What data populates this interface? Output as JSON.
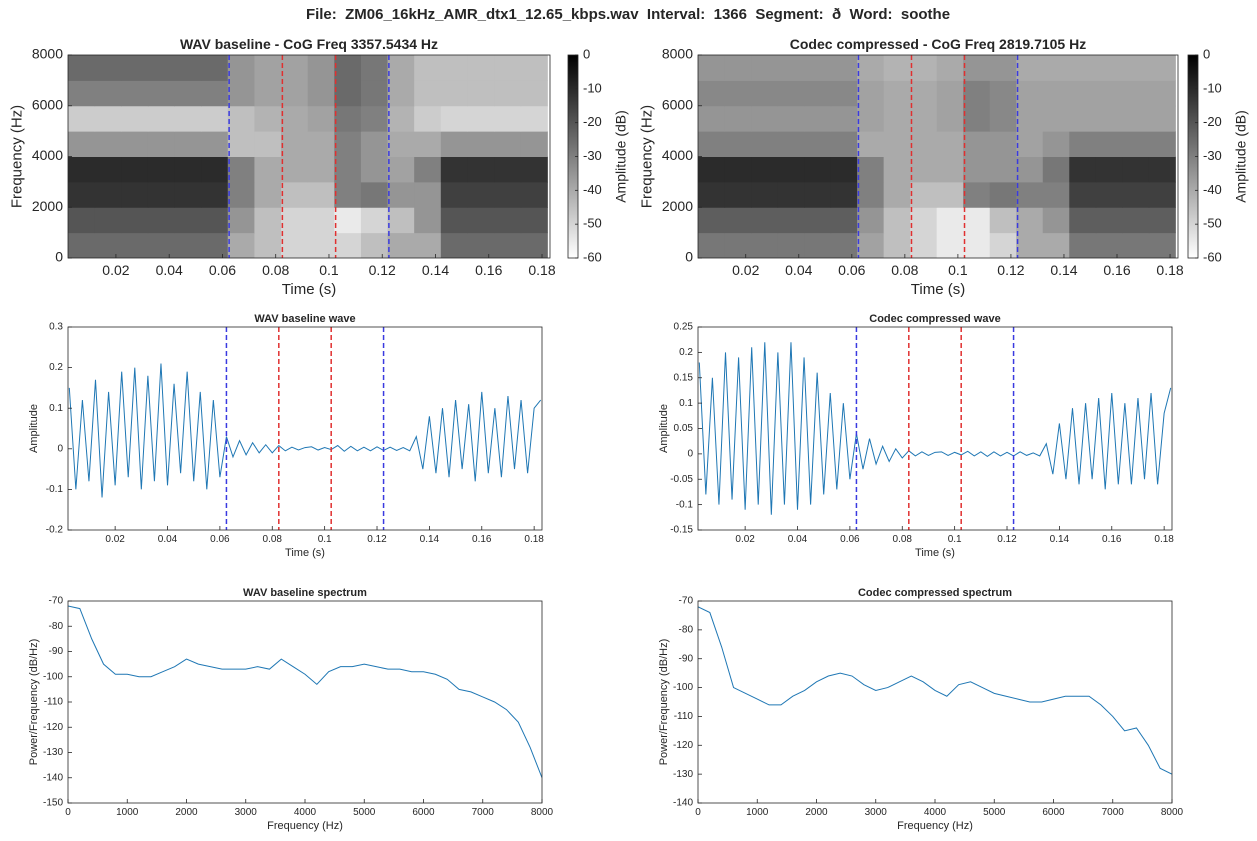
{
  "title": "File:  ZM06_16kHz_AMR_dtx1_12.65_kbps.wav  Interval:  1366  Segment:  ð  Word:  soothe",
  "chart_data": [
    {
      "type": "heatmap",
      "title": "WAV baseline - CoG Freq 3357.5434 Hz",
      "xlabel": "Time (s)",
      "ylabel": "Frequency (Hz)",
      "x": [
        0.007,
        0.017,
        0.027,
        0.037,
        0.047,
        0.057,
        0.067,
        0.077,
        0.087,
        0.097,
        0.107,
        0.117,
        0.127,
        0.137,
        0.147,
        0.157,
        0.167,
        0.177
      ],
      "y": [
        500,
        1500,
        2500,
        3500,
        4500,
        5500,
        6500,
        7500
      ],
      "values": [
        [
          -25,
          -25,
          -25,
          -25,
          -25,
          -25,
          -40,
          -45,
          -50,
          -50,
          -50,
          -45,
          -40,
          -40,
          -25,
          -25,
          -25,
          -25
        ],
        [
          -20,
          -20,
          -20,
          -20,
          -20,
          -20,
          -35,
          -45,
          -50,
          -50,
          -55,
          -50,
          -45,
          -35,
          -20,
          -20,
          -20,
          -20
        ],
        [
          -12,
          -12,
          -12,
          -12,
          -12,
          -12,
          -30,
          -40,
          -45,
          -45,
          -30,
          -28,
          -35,
          -35,
          -15,
          -15,
          -15,
          -15
        ],
        [
          -10,
          -10,
          -10,
          -10,
          -10,
          -10,
          -30,
          -40,
          -40,
          -40,
          -30,
          -35,
          -38,
          -30,
          -12,
          -12,
          -12,
          -12
        ],
        [
          -35,
          -35,
          -35,
          -35,
          -35,
          -35,
          -45,
          -45,
          -40,
          -40,
          -30,
          -35,
          -40,
          -40,
          -35,
          -35,
          -35,
          -35
        ],
        [
          -48,
          -48,
          -48,
          -48,
          -48,
          -48,
          -45,
          -42,
          -40,
          -38,
          -28,
          -30,
          -42,
          -48,
          -50,
          -50,
          -50,
          -50
        ],
        [
          -30,
          -30,
          -30,
          -30,
          -30,
          -30,
          -35,
          -38,
          -38,
          -35,
          -25,
          -28,
          -40,
          -45,
          -45,
          -45,
          -45,
          -45
        ],
        [
          -25,
          -25,
          -25,
          -25,
          -25,
          -25,
          -35,
          -38,
          -38,
          -35,
          -25,
          -28,
          -40,
          -45,
          -45,
          -45,
          -45,
          -45
        ]
      ],
      "clim": [
        -60,
        0
      ],
      "cticks": [
        0,
        -10,
        -20,
        -30,
        -40,
        -50,
        -60
      ],
      "clabel": "Amplitude (dB)",
      "xlim": [
        0.002,
        0.183
      ],
      "xticks": [
        0.02,
        0.04,
        0.06,
        0.08,
        0.1,
        0.12,
        0.14,
        0.16,
        0.18
      ],
      "ylim": [
        0,
        8000
      ],
      "yticks": [
        0,
        2000,
        4000,
        6000,
        8000
      ],
      "vlines": [
        {
          "x": 0.0625,
          "color": "#3a3ae0"
        },
        {
          "x": 0.0825,
          "color": "#e03030"
        },
        {
          "x": 0.1025,
          "color": "#e03030"
        },
        {
          "x": 0.1225,
          "color": "#3a3ae0"
        }
      ]
    },
    {
      "type": "heatmap",
      "title": "Codec compressed - CoG Freq 2819.7105 Hz",
      "xlabel": "Time (s)",
      "ylabel": "Frequency (Hz)",
      "x": [
        0.007,
        0.017,
        0.027,
        0.037,
        0.047,
        0.057,
        0.067,
        0.077,
        0.087,
        0.097,
        0.107,
        0.117,
        0.127,
        0.137,
        0.147,
        0.157,
        0.167,
        0.177
      ],
      "y": [
        500,
        1500,
        2500,
        3500,
        4500,
        5500,
        6500,
        7500
      ],
      "values": [
        [
          -28,
          -28,
          -28,
          -28,
          -28,
          -28,
          -38,
          -45,
          -50,
          -55,
          -55,
          -50,
          -40,
          -40,
          -28,
          -28,
          -28,
          -28
        ],
        [
          -22,
          -22,
          -22,
          -22,
          -22,
          -22,
          -35,
          -45,
          -50,
          -55,
          -55,
          -45,
          -40,
          -35,
          -22,
          -22,
          -22,
          -22
        ],
        [
          -12,
          -12,
          -12,
          -12,
          -12,
          -12,
          -30,
          -40,
          -45,
          -45,
          -30,
          -28,
          -30,
          -30,
          -15,
          -15,
          -15,
          -15
        ],
        [
          -10,
          -10,
          -10,
          -10,
          -10,
          -10,
          -30,
          -40,
          -40,
          -40,
          -35,
          -35,
          -35,
          -28,
          -12,
          -12,
          -12,
          -12
        ],
        [
          -30,
          -30,
          -30,
          -30,
          -30,
          -30,
          -40,
          -40,
          -40,
          -40,
          -35,
          -35,
          -38,
          -35,
          -30,
          -30,
          -30,
          -30
        ],
        [
          -35,
          -35,
          -35,
          -35,
          -35,
          -35,
          -38,
          -40,
          -40,
          -38,
          -30,
          -32,
          -38,
          -38,
          -38,
          -38,
          -38,
          -38
        ],
        [
          -32,
          -32,
          -32,
          -32,
          -32,
          -32,
          -38,
          -40,
          -40,
          -38,
          -30,
          -32,
          -38,
          -38,
          -38,
          -38,
          -38,
          -38
        ],
        [
          -35,
          -35,
          -35,
          -35,
          -35,
          -35,
          -40,
          -42,
          -42,
          -40,
          -35,
          -35,
          -40,
          -40,
          -40,
          -40,
          -40,
          -40
        ]
      ],
      "clim": [
        -60,
        0
      ],
      "cticks": [
        0,
        -10,
        -20,
        -30,
        -40,
        -50,
        -60
      ],
      "clabel": "Amplitude (dB)",
      "xlim": [
        0.002,
        0.183
      ],
      "xticks": [
        0.02,
        0.04,
        0.06,
        0.08,
        0.1,
        0.12,
        0.14,
        0.16,
        0.18
      ],
      "ylim": [
        0,
        8000
      ],
      "yticks": [
        0,
        2000,
        4000,
        6000,
        8000
      ],
      "vlines": [
        {
          "x": 0.0625,
          "color": "#3a3ae0"
        },
        {
          "x": 0.0825,
          "color": "#e03030"
        },
        {
          "x": 0.1025,
          "color": "#e03030"
        },
        {
          "x": 0.1225,
          "color": "#3a3ae0"
        }
      ]
    },
    {
      "type": "line",
      "title": "WAV baseline wave",
      "xlabel": "Time (s)",
      "ylabel": "Amplitude",
      "color": "#1f77b4",
      "x": [
        0.0025,
        0.005,
        0.0075,
        0.01,
        0.0125,
        0.015,
        0.0175,
        0.02,
        0.0225,
        0.025,
        0.0275,
        0.03,
        0.0325,
        0.035,
        0.0375,
        0.04,
        0.0425,
        0.045,
        0.0475,
        0.05,
        0.0525,
        0.055,
        0.0575,
        0.06,
        0.0625,
        0.065,
        0.0675,
        0.07,
        0.0725,
        0.075,
        0.0775,
        0.08,
        0.0825,
        0.085,
        0.0875,
        0.09,
        0.0925,
        0.095,
        0.0975,
        0.1,
        0.1025,
        0.105,
        0.1075,
        0.11,
        0.1125,
        0.115,
        0.1175,
        0.12,
        0.1225,
        0.125,
        0.1275,
        0.13,
        0.1325,
        0.135,
        0.1375,
        0.14,
        0.1425,
        0.145,
        0.1475,
        0.15,
        0.1525,
        0.155,
        0.1575,
        0.16,
        0.1625,
        0.165,
        0.1675,
        0.17,
        0.1725,
        0.175,
        0.1775,
        0.18,
        0.1825
      ],
      "values": [
        0.15,
        -0.1,
        0.12,
        -0.08,
        0.17,
        -0.12,
        0.14,
        -0.09,
        0.19,
        -0.07,
        0.2,
        -0.1,
        0.18,
        -0.08,
        0.21,
        -0.09,
        0.16,
        -0.06,
        0.19,
        -0.08,
        0.14,
        -0.1,
        0.12,
        -0.07,
        0.03,
        -0.02,
        0.02,
        -0.015,
        0.015,
        -0.01,
        0.01,
        -0.01,
        0.008,
        -0.005,
        0.004,
        -0.003,
        0.003,
        0.005,
        -0.003,
        0.003,
        -0.002,
        0.008,
        -0.006,
        0.006,
        -0.005,
        0.004,
        -0.005,
        0.005,
        -0.004,
        0.004,
        -0.004,
        0.003,
        -0.005,
        0.03,
        -0.05,
        0.08,
        -0.06,
        0.1,
        -0.07,
        0.12,
        -0.05,
        0.11,
        -0.08,
        0.14,
        -0.06,
        0.1,
        -0.07,
        0.13,
        -0.05,
        0.12,
        -0.06,
        0.1,
        0.12
      ],
      "xlim": [
        0.002,
        0.183
      ],
      "xticks": [
        0.02,
        0.04,
        0.06,
        0.08,
        0.1,
        0.12,
        0.14,
        0.16,
        0.18
      ],
      "ylim": [
        -0.2,
        0.3
      ],
      "yticks": [
        -0.2,
        -0.1,
        0,
        0.1,
        0.2,
        0.3
      ],
      "vlines": [
        {
          "x": 0.0625,
          "color": "#3a3ae0"
        },
        {
          "x": 0.0825,
          "color": "#e03030"
        },
        {
          "x": 0.1025,
          "color": "#e03030"
        },
        {
          "x": 0.1225,
          "color": "#3a3ae0"
        }
      ]
    },
    {
      "type": "line",
      "title": "Codec compressed wave",
      "xlabel": "Time (s)",
      "ylabel": "Amplitude",
      "color": "#1f77b4",
      "x": [
        0.0025,
        0.005,
        0.0075,
        0.01,
        0.0125,
        0.015,
        0.0175,
        0.02,
        0.0225,
        0.025,
        0.0275,
        0.03,
        0.0325,
        0.035,
        0.0375,
        0.04,
        0.0425,
        0.045,
        0.0475,
        0.05,
        0.0525,
        0.055,
        0.0575,
        0.06,
        0.0625,
        0.065,
        0.0675,
        0.07,
        0.0725,
        0.075,
        0.0775,
        0.08,
        0.0825,
        0.085,
        0.0875,
        0.09,
        0.0925,
        0.095,
        0.0975,
        0.1,
        0.1025,
        0.105,
        0.1075,
        0.11,
        0.1125,
        0.115,
        0.1175,
        0.12,
        0.1225,
        0.125,
        0.1275,
        0.13,
        0.1325,
        0.135,
        0.1375,
        0.14,
        0.1425,
        0.145,
        0.1475,
        0.15,
        0.1525,
        0.155,
        0.1575,
        0.16,
        0.1625,
        0.165,
        0.1675,
        0.17,
        0.1725,
        0.175,
        0.1775,
        0.18,
        0.1825
      ],
      "values": [
        0.18,
        -0.08,
        0.15,
        -0.1,
        0.2,
        -0.09,
        0.19,
        -0.11,
        0.21,
        -0.1,
        0.22,
        -0.12,
        0.2,
        -0.1,
        0.22,
        -0.11,
        0.19,
        -0.1,
        0.16,
        -0.08,
        0.12,
        -0.07,
        0.1,
        -0.05,
        0.04,
        -0.03,
        0.03,
        -0.02,
        0.015,
        -0.015,
        0.01,
        -0.008,
        0.006,
        -0.004,
        0.004,
        -0.003,
        0.003,
        0.004,
        -0.003,
        0.003,
        -0.002,
        0.005,
        -0.004,
        0.004,
        -0.005,
        0.004,
        -0.004,
        0.003,
        -0.004,
        0.004,
        -0.003,
        0.002,
        -0.004,
        0.02,
        -0.04,
        0.06,
        -0.05,
        0.09,
        -0.06,
        0.1,
        -0.05,
        0.11,
        -0.07,
        0.12,
        -0.06,
        0.1,
        -0.06,
        0.11,
        -0.05,
        0.12,
        -0.06,
        0.08,
        0.13
      ],
      "xlim": [
        0.002,
        0.183
      ],
      "xticks": [
        0.02,
        0.04,
        0.06,
        0.08,
        0.1,
        0.12,
        0.14,
        0.16,
        0.18
      ],
      "ylim": [
        -0.15,
        0.25
      ],
      "yticks": [
        -0.15,
        -0.1,
        -0.05,
        0,
        0.05,
        0.1,
        0.15,
        0.2,
        0.25
      ],
      "vlines": [
        {
          "x": 0.0625,
          "color": "#3a3ae0"
        },
        {
          "x": 0.0825,
          "color": "#e03030"
        },
        {
          "x": 0.1025,
          "color": "#e03030"
        },
        {
          "x": 0.1225,
          "color": "#3a3ae0"
        }
      ]
    },
    {
      "type": "line",
      "title": "WAV baseline spectrum",
      "xlabel": "Frequency (Hz)",
      "ylabel": "Power/Frequency (dB/Hz)",
      "color": "#1f77b4",
      "x": [
        0,
        200,
        400,
        600,
        800,
        1000,
        1200,
        1400,
        1600,
        1800,
        2000,
        2200,
        2400,
        2600,
        2800,
        3000,
        3200,
        3400,
        3600,
        3800,
        4000,
        4200,
        4400,
        4600,
        4800,
        5000,
        5200,
        5400,
        5600,
        5800,
        6000,
        6200,
        6400,
        6600,
        6800,
        7000,
        7200,
        7400,
        7600,
        7800,
        8000
      ],
      "values": [
        -72,
        -73,
        -85,
        -95,
        -99,
        -99,
        -100,
        -100,
        -98,
        -96,
        -93,
        -95,
        -96,
        -97,
        -97,
        -97,
        -96,
        -97,
        -93,
        -96,
        -99,
        -103,
        -98,
        -96,
        -96,
        -95,
        -96,
        -97,
        -97,
        -98,
        -98,
        -99,
        -101,
        -105,
        -106,
        -108,
        -110,
        -113,
        -118,
        -128,
        -140
      ],
      "xlim": [
        0,
        8000
      ],
      "xticks": [
        0,
        1000,
        2000,
        3000,
        4000,
        5000,
        6000,
        7000,
        8000
      ],
      "ylim": [
        -150,
        -70
      ],
      "yticks": [
        -150,
        -140,
        -130,
        -120,
        -110,
        -100,
        -90,
        -80,
        -70
      ]
    },
    {
      "type": "line",
      "title": "Codec compressed spectrum",
      "xlabel": "Frequency (Hz)",
      "ylabel": "Power/Frequency (dB/Hz)",
      "color": "#1f77b4",
      "x": [
        0,
        200,
        400,
        600,
        800,
        1000,
        1200,
        1400,
        1600,
        1800,
        2000,
        2200,
        2400,
        2600,
        2800,
        3000,
        3200,
        3400,
        3600,
        3800,
        4000,
        4200,
        4400,
        4600,
        4800,
        5000,
        5200,
        5400,
        5600,
        5800,
        6000,
        6200,
        6400,
        6600,
        6800,
        7000,
        7200,
        7400,
        7600,
        7800,
        8000
      ],
      "values": [
        -72,
        -74,
        -86,
        -100,
        -102,
        -104,
        -106,
        -106,
        -103,
        -101,
        -98,
        -96,
        -95,
        -96,
        -99,
        -101,
        -100,
        -98,
        -96,
        -98,
        -101,
        -103,
        -99,
        -98,
        -100,
        -102,
        -103,
        -104,
        -105,
        -105,
        -104,
        -103,
        -103,
        -103,
        -106,
        -110,
        -115,
        -114,
        -120,
        -128,
        -130
      ],
      "xlim": [
        0,
        8000
      ],
      "xticks": [
        0,
        1000,
        2000,
        3000,
        4000,
        5000,
        6000,
        7000,
        8000
      ],
      "ylim": [
        -140,
        -70
      ],
      "yticks": [
        -140,
        -130,
        -120,
        -110,
        -100,
        -90,
        -80,
        -70
      ]
    }
  ]
}
